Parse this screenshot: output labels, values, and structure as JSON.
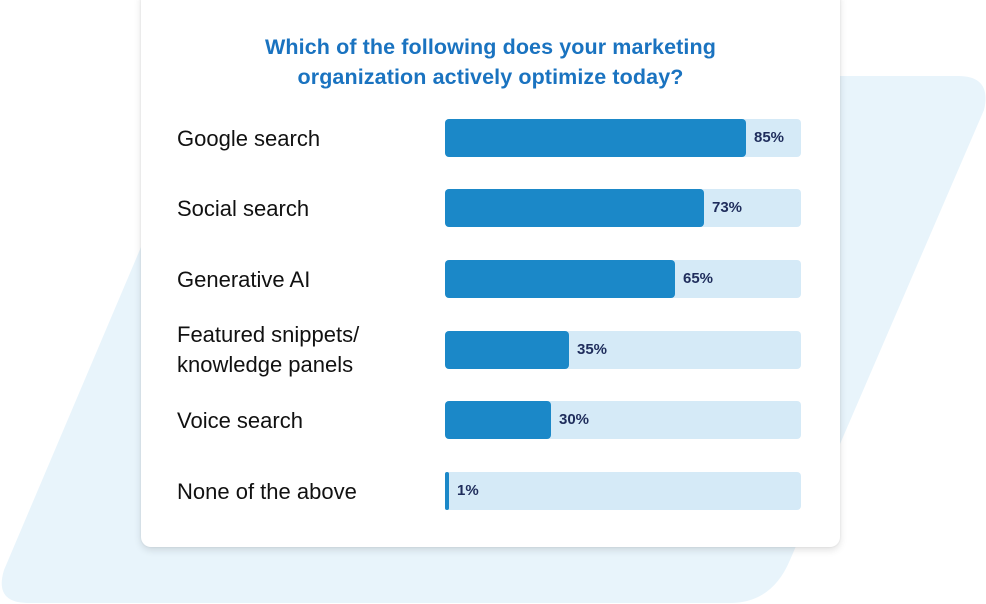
{
  "title_line1": "Which of the following does your marketing",
  "title_line2": "organization actively optimize today?",
  "colors": {
    "title": "#1a73c0",
    "bar_fill": "#1b88c8",
    "bar_track": "#d5eaf7",
    "value_text": "#1f2d5c",
    "background_shape": "#e8f4fb"
  },
  "rows": [
    {
      "label": "Google search",
      "value": 85,
      "value_label": "85%"
    },
    {
      "label": "Social search",
      "value": 73,
      "value_label": "73%"
    },
    {
      "label": "Generative AI",
      "value": 65,
      "value_label": "65%"
    },
    {
      "label": "Featured snippets/ knowledge panels",
      "label_line1": "Featured snippets/",
      "label_line2": "knowledge panels",
      "value": 35,
      "value_label": "35%"
    },
    {
      "label": "Voice search",
      "value": 30,
      "value_label": "30%"
    },
    {
      "label": "None of the above",
      "value": 1,
      "value_label": "1%"
    }
  ],
  "chart_data": {
    "type": "bar",
    "orientation": "horizontal",
    "title": "Which of the following does your marketing organization actively optimize today?",
    "categories": [
      "Google search",
      "Social search",
      "Generative AI",
      "Featured snippets/knowledge panels",
      "Voice search",
      "None of the above"
    ],
    "values": [
      85,
      73,
      65,
      35,
      30,
      1
    ],
    "value_labels": [
      "85%",
      "73%",
      "65%",
      "35%",
      "30%",
      "1%"
    ],
    "xlabel": "",
    "ylabel": "",
    "xlim": [
      0,
      100
    ],
    "grid": false,
    "legend": "none"
  }
}
